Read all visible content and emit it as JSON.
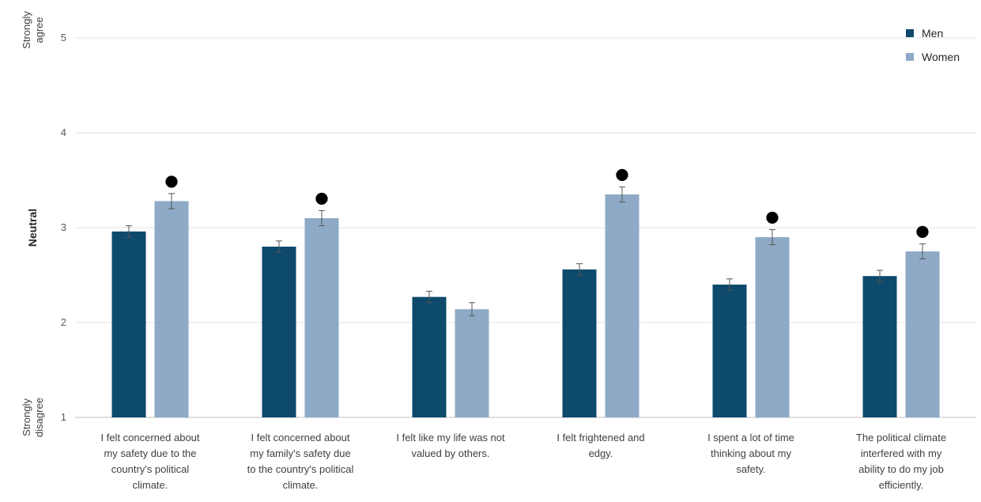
{
  "chart_data": {
    "type": "bar",
    "categories": [
      [
        "I felt concerned about",
        "my safety due to the",
        "country's political",
        "climate."
      ],
      [
        "I felt concerned about",
        "my family's safety due",
        "to the country's political",
        "climate."
      ],
      [
        "I felt like my life was not",
        "valued by others."
      ],
      [
        "I felt frightened and",
        "edgy."
      ],
      [
        "I spent a lot of time",
        "thinking about my",
        "safety."
      ],
      [
        "The political climate",
        "interfered with my",
        "ability to do my job",
        "efficiently."
      ]
    ],
    "series": [
      {
        "name": "Men",
        "color": "#0d4a6b",
        "values": [
          2.96,
          2.8,
          2.27,
          2.56,
          2.4,
          2.49
        ],
        "errors": [
          0.06,
          0.06,
          0.06,
          0.06,
          0.06,
          0.06
        ]
      },
      {
        "name": "Women",
        "color": "#8eaac6",
        "values": [
          3.28,
          3.1,
          2.14,
          3.35,
          2.9,
          2.75
        ],
        "errors": [
          0.08,
          0.08,
          0.07,
          0.08,
          0.08,
          0.08
        ]
      }
    ],
    "significant": [
      true,
      true,
      false,
      true,
      true,
      true
    ],
    "significance_marker": "●",
    "ylim": [
      1,
      5
    ],
    "yticks": [
      1,
      2,
      3,
      4,
      5
    ],
    "y_anchor_labels": [
      {
        "value": 5,
        "lines": [
          "Strongly",
          "agree"
        ],
        "bold": false
      },
      {
        "value": 3,
        "lines": [
          "Neutral"
        ],
        "bold": true
      },
      {
        "value": 1,
        "lines": [
          "Strongly",
          "disagree"
        ],
        "bold": false
      }
    ],
    "grid": true,
    "legend_position": "top-right",
    "title": "",
    "xlabel": "",
    "ylabel": ""
  }
}
